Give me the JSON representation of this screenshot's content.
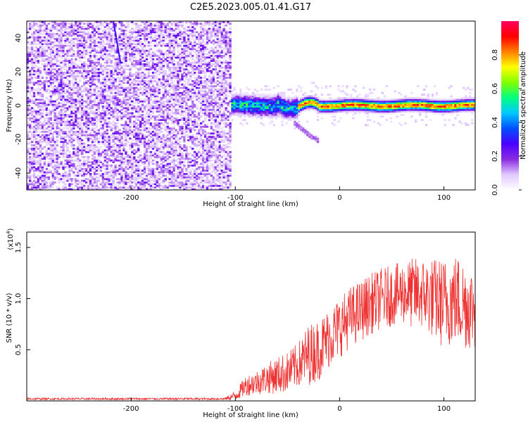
{
  "figure_title": "C2E5.2023.005.01.41.G17",
  "chart_data": [
    {
      "type": "heatmap",
      "title": "",
      "xlabel": "Height of straight line (km)",
      "ylabel": "Frequency (Hz)",
      "xlim": [
        -300,
        130
      ],
      "ylim": [
        -50,
        50
      ],
      "xticks": [
        -200,
        -100,
        0,
        100
      ],
      "yticks": [
        -40,
        -20,
        0,
        20,
        40
      ],
      "x_tick_labels": [
        "-200",
        "-100",
        "0",
        "100"
      ],
      "y_tick_labels": [
        "-40",
        "-20",
        "0",
        "20",
        "40"
      ],
      "colorbar": {
        "label": "Normalized spectral amplitude",
        "range": [
          0,
          1
        ],
        "ticks": [
          0.0,
          0.2,
          0.4,
          0.6,
          0.8
        ],
        "tick_labels": [
          "0.0",
          "0.2",
          "0.4",
          "0.6",
          "0.8"
        ],
        "colors": [
          "#ffffff",
          "#e0c8ff",
          "#8a2be2",
          "#4b00ff",
          "#0050ff",
          "#00c8ff",
          "#00ff80",
          "#80ff00",
          "#ffff00",
          "#ff8000",
          "#ff0000",
          "#ff0060"
        ]
      },
      "regions": [
        {
          "x_range": [
            -300,
            -103
          ],
          "description": "broadband noise",
          "amplitude_range": [
            0.0,
            0.2
          ]
        },
        {
          "x_range": [
            -110,
            -40
          ],
          "center_frequency": 0,
          "amplitude_range": [
            0.2,
            0.7
          ]
        },
        {
          "x_range": [
            -40,
            130
          ],
          "center_frequency": 0,
          "amplitude_range": [
            0.7,
            0.95
          ]
        }
      ],
      "grid": false
    },
    {
      "type": "line",
      "title": "",
      "xlabel": "Height of straight line (km)",
      "ylabel": "SNR (10 * v/v)",
      "multiplier_label": "(x10",
      "multiplier_exponent": "4",
      "xlim": [
        -300,
        130
      ],
      "ylim": [
        0,
        1.65
      ],
      "xticks": [
        -200,
        -100,
        0,
        100
      ],
      "yticks": [
        0.5,
        1.0,
        1.5
      ],
      "x_tick_labels": [
        "-200",
        "-100",
        "0",
        "100"
      ],
      "y_tick_labels": [
        "0.5",
        "1.0",
        "1.5"
      ],
      "series": [
        {
          "color": "#ee3333",
          "x": [
            -300,
            -250,
            -200,
            -150,
            -110,
            -100,
            -90,
            -80,
            -70,
            -60,
            -50,
            -40,
            -30,
            -20,
            -10,
            0,
            10,
            20,
            30,
            40,
            50,
            60,
            70,
            80,
            90,
            100,
            110,
            120,
            130
          ],
          "y": [
            0.02,
            0.02,
            0.02,
            0.02,
            0.02,
            0.05,
            0.15,
            0.18,
            0.22,
            0.25,
            0.28,
            0.35,
            0.45,
            0.5,
            0.62,
            0.72,
            0.82,
            0.88,
            0.95,
            1.0,
            1.03,
            1.06,
            1.05,
            1.05,
            1.0,
            0.95,
            1.0,
            0.95,
            0.9
          ],
          "noise_amplitude": [
            0.01,
            0.01,
            0.01,
            0.01,
            0.01,
            0.05,
            0.1,
            0.12,
            0.15,
            0.18,
            0.2,
            0.22,
            0.3,
            0.3,
            0.3,
            0.3,
            0.3,
            0.3,
            0.3,
            0.3,
            0.3,
            0.3,
            0.35,
            0.35,
            0.4,
            0.45,
            0.45,
            0.45,
            0.4
          ]
        }
      ],
      "grid": false
    }
  ]
}
